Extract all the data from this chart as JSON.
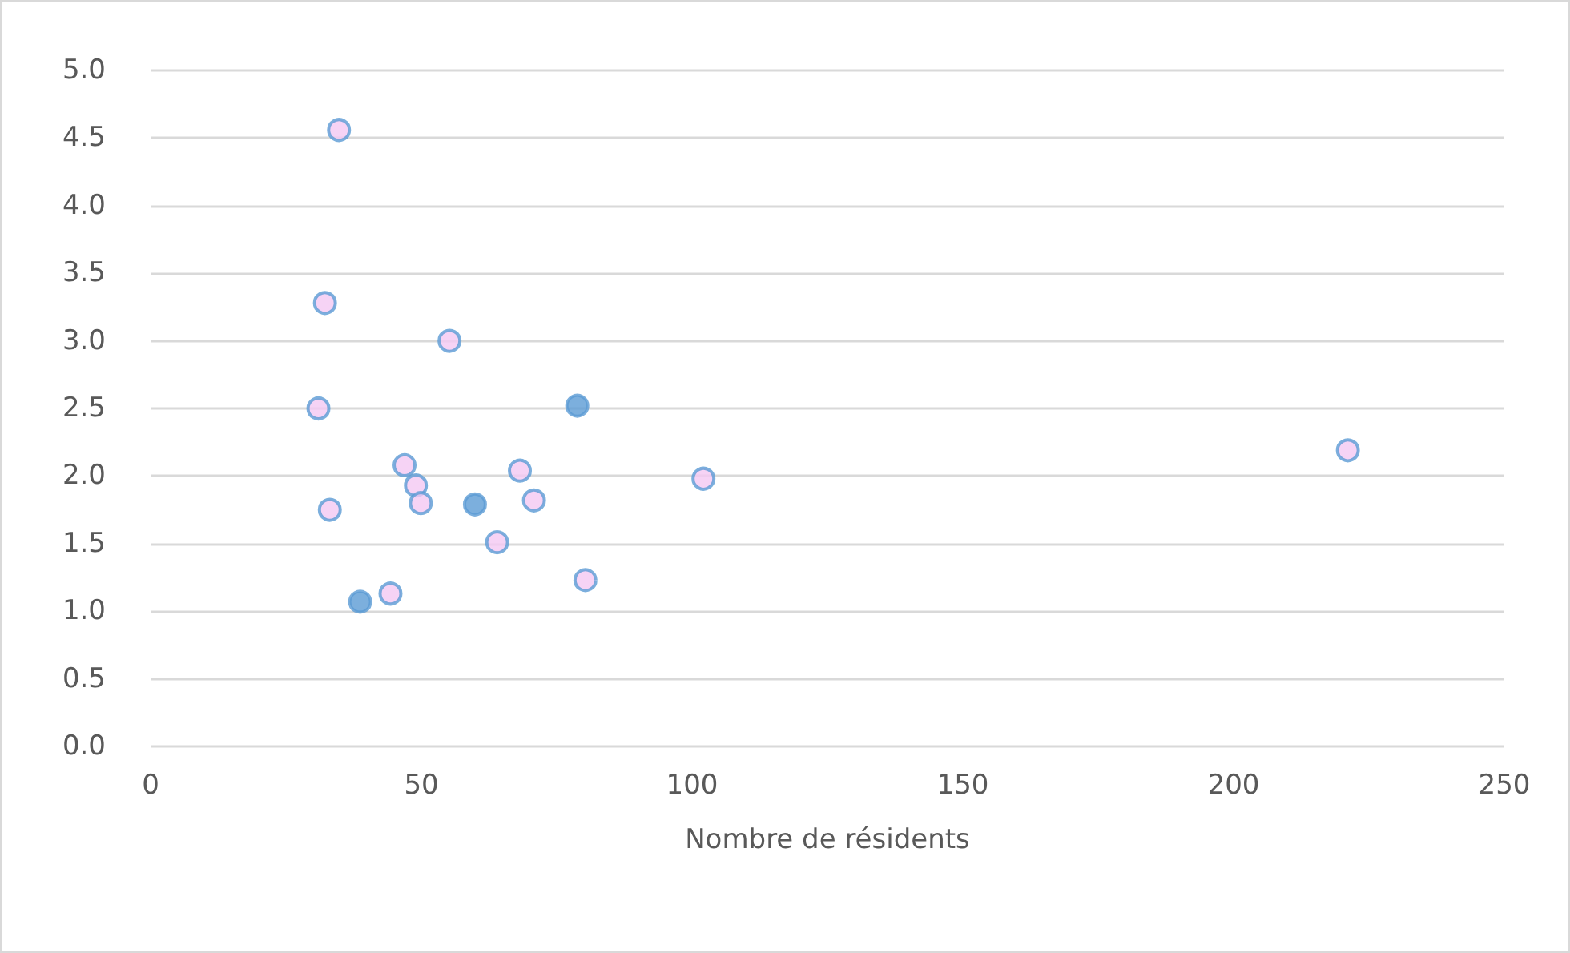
{
  "chart_data": {
    "type": "scatter",
    "xlabel": "Nombre de résidents",
    "xlim": [
      0,
      250
    ],
    "xticks": [
      0,
      50,
      100,
      150,
      200,
      250
    ],
    "ylim": [
      0,
      5
    ],
    "yticks": [
      {
        "value": 0,
        "label": "0.0"
      },
      {
        "value": 0.5,
        "label": "0.5"
      },
      {
        "value": 1,
        "label": "1.0"
      },
      {
        "value": 1.5,
        "label": "1.5"
      },
      {
        "value": 2,
        "label": "2.0"
      },
      {
        "value": 2.5,
        "label": "2.5"
      },
      {
        "value": 3,
        "label": "3.0"
      },
      {
        "value": 3.5,
        "label": "3.5"
      },
      {
        "value": 4,
        "label": "4.0"
      },
      {
        "value": 4.5,
        "label": "4.5"
      },
      {
        "value": 5,
        "label": "5.0"
      }
    ],
    "grid": "y",
    "marker": "circle",
    "series": [
      {
        "color": "#f4c8f2",
        "x": [
          34.8,
          32.2,
          55.2,
          31.0,
          46.9,
          49.0,
          49.9,
          33.1,
          68.2,
          70.8,
          64.0,
          44.3,
          80.3,
          102.1,
          221.1
        ],
        "values": [
          4.56,
          3.28,
          3.0,
          2.5,
          2.08,
          1.93,
          1.8,
          1.75,
          2.04,
          1.82,
          1.51,
          1.13,
          1.23,
          1.98,
          2.19
        ]
      },
      {
        "color": "#5b9bd5",
        "x": [
          78.8,
          59.9,
          38.7
        ],
        "values": [
          2.52,
          1.79,
          1.07
        ]
      }
    ]
  }
}
